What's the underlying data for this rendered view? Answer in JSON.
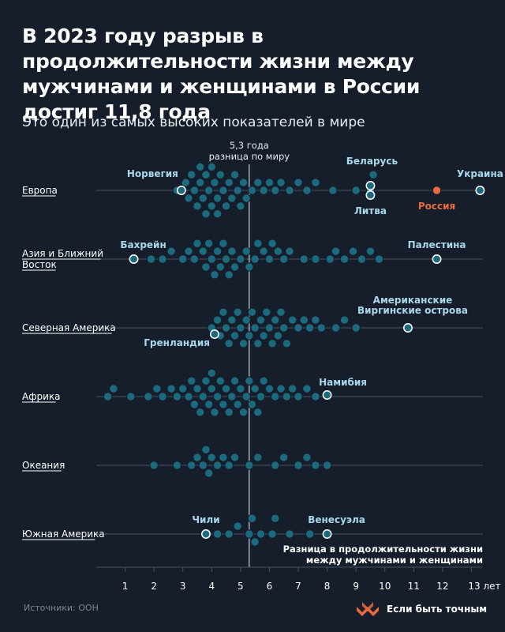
{
  "title": "В 2023 году разрыв в продолжительности жизни между мужчинами и женщинами в России достиг 11,8 года",
  "subtitle": "Это один из самых высоких показателей в мире",
  "source": "Источники: ООН",
  "brand": "Если быть точным",
  "colors": {
    "background": "#161e2b",
    "dot": "#1c6a7e",
    "russia": "#e96a3d",
    "annotation": "#a8d8ea"
  },
  "chart_data": {
    "type": "scatter",
    "subtype": "beeswarm",
    "x_tick_labels": [
      "1",
      "2",
      "3",
      "4",
      "5",
      "6",
      "7",
      "8",
      "9",
      "10",
      "11",
      "12",
      "13 лет"
    ],
    "x_ticks": [
      1,
      2,
      3,
      4,
      5,
      6,
      7,
      8,
      9,
      10,
      11,
      12,
      13
    ],
    "xlim": [
      0,
      14
    ],
    "reference": {
      "value": 5.3,
      "label_line1": "5,3 года",
      "label_line2": "разница по миру"
    },
    "axis_note_line1": "Разница в продолжительности жизни",
    "axis_note_line2": "между мужчинами и женщинами",
    "rows": [
      {
        "name": "Европа",
        "values": [
          2.8,
          3.1,
          3.2,
          3.3,
          3.4,
          3.5,
          3.6,
          3.6,
          3.7,
          3.8,
          3.8,
          3.9,
          4.0,
          4.0,
          4.1,
          4.2,
          4.2,
          4.3,
          4.4,
          4.5,
          4.6,
          4.7,
          4.8,
          4.9,
          5.0,
          5.1,
          5.2,
          5.4,
          5.6,
          5.8,
          6.0,
          6.2,
          6.4,
          6.7,
          7.0,
          7.3,
          7.6,
          8.2,
          9.0,
          9.5,
          9.6
        ],
        "highlights": [
          {
            "name": "Норвегия",
            "value": 2.95
          },
          {
            "name": "Беларусь",
            "value": 9.5
          },
          {
            "name": "Литва",
            "value": 9.5
          },
          {
            "name": "Россия",
            "value": 11.8
          },
          {
            "name": "Украина",
            "value": 13.3
          }
        ]
      },
      {
        "name": "Азия и Ближний Восток",
        "values": [
          1.9,
          2.3,
          2.6,
          3.0,
          3.2,
          3.4,
          3.5,
          3.7,
          3.8,
          3.9,
          4.0,
          4.1,
          4.2,
          4.3,
          4.4,
          4.5,
          4.6,
          4.7,
          4.8,
          5.0,
          5.2,
          5.3,
          5.5,
          5.6,
          5.8,
          6.0,
          6.1,
          6.3,
          6.5,
          6.7,
          7.2,
          7.6,
          8.1,
          8.3,
          8.6,
          8.9,
          9.2,
          9.5,
          9.8
        ],
        "highlights": [
          {
            "name": "Бахрейн",
            "value": 1.3
          },
          {
            "name": "Палестина",
            "value": 11.8
          }
        ]
      },
      {
        "name": "Северная Америка",
        "values": [
          4.0,
          4.2,
          4.3,
          4.4,
          4.5,
          4.6,
          4.7,
          4.8,
          4.9,
          5.0,
          5.1,
          5.2,
          5.3,
          5.4,
          5.5,
          5.6,
          5.7,
          5.8,
          5.9,
          6.0,
          6.1,
          6.2,
          6.3,
          6.4,
          6.5,
          6.6,
          6.8,
          7.0,
          7.2,
          7.4,
          7.6,
          7.8,
          8.3,
          8.6,
          9.0
        ],
        "highlights": [
          {
            "name": "Гренландия",
            "value": 4.1
          },
          {
            "name": "Американские Виргинские острова",
            "value": 10.8
          }
        ]
      },
      {
        "name": "Африка",
        "values": [
          0.4,
          0.6,
          1.2,
          1.8,
          2.1,
          2.3,
          2.6,
          2.8,
          3.0,
          3.2,
          3.3,
          3.4,
          3.5,
          3.6,
          3.7,
          3.8,
          3.9,
          4.0,
          4.0,
          4.1,
          4.2,
          4.3,
          4.4,
          4.5,
          4.6,
          4.7,
          4.8,
          4.9,
          5.0,
          5.1,
          5.2,
          5.3,
          5.4,
          5.5,
          5.6,
          5.7,
          5.8,
          6.0,
          6.2,
          6.4,
          6.6,
          6.8,
          7.0,
          7.3,
          7.6
        ],
        "highlights": [
          {
            "name": "Намибия",
            "value": 8.0
          }
        ]
      },
      {
        "name": "Океания",
        "values": [
          2.0,
          2.8,
          3.3,
          3.5,
          3.7,
          3.8,
          3.9,
          4.0,
          4.2,
          4.4,
          4.6,
          4.8,
          5.3,
          5.6,
          6.2,
          6.5,
          7.0,
          7.3,
          7.6,
          8.0
        ],
        "highlights": []
      },
      {
        "name": "Южная Америка",
        "values": [
          4.2,
          4.6,
          4.9,
          5.3,
          5.4,
          5.5,
          5.7,
          6.1,
          6.2,
          6.7,
          7.4
        ],
        "highlights": [
          {
            "name": "Чили",
            "value": 3.8
          },
          {
            "name": "Венесуэла",
            "value": 8.0
          }
        ]
      }
    ]
  }
}
